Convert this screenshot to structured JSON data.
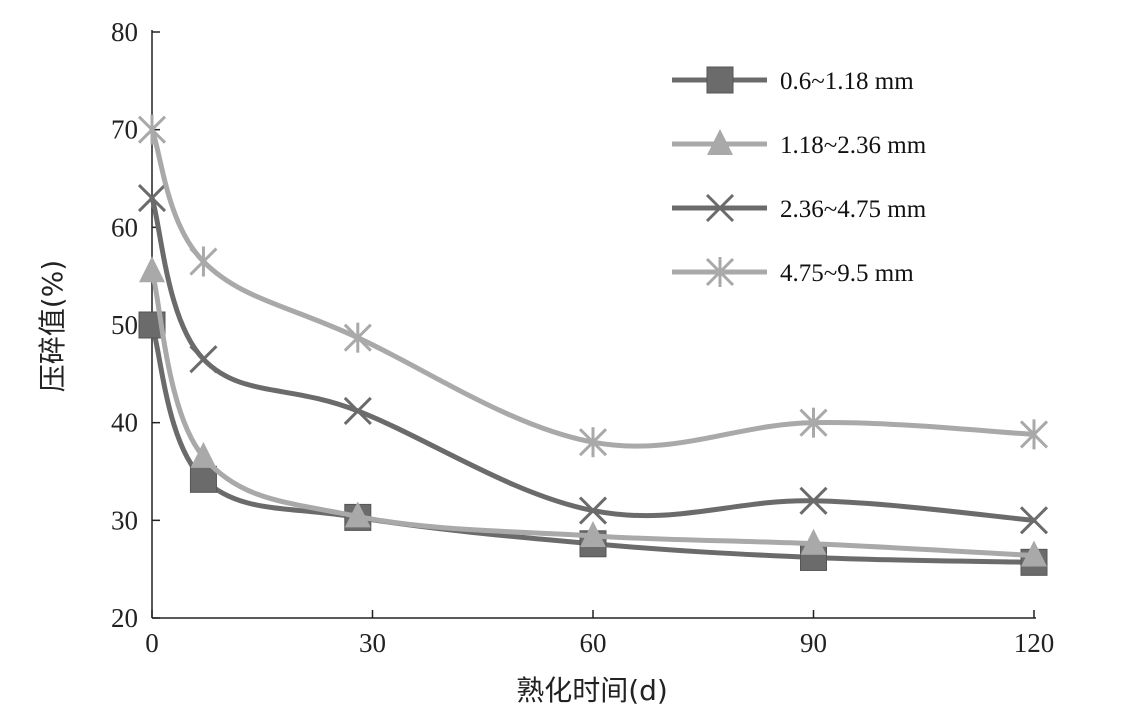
{
  "chart_data": {
    "type": "line",
    "title": "",
    "xlabel": "熟化时间(d)",
    "ylabel": "压碎值(%)",
    "xlim": [
      0,
      120
    ],
    "ylim": [
      20,
      80
    ],
    "xticks": [
      0,
      30,
      60,
      90,
      120
    ],
    "yticks": [
      20,
      30,
      40,
      50,
      60,
      70,
      80
    ],
    "grid": false,
    "legend_position": "top-right",
    "x": [
      0,
      7,
      28,
      60,
      90,
      120
    ],
    "series": [
      {
        "name": "0.6~1.18 mm",
        "marker": "square",
        "color": "#6b6b6b",
        "values": [
          50,
          34.2,
          30.3,
          27.6,
          26.2,
          25.7
        ]
      },
      {
        "name": "1.18~2.36 mm",
        "marker": "triangle",
        "color": "#a9a9a9",
        "values": [
          55.5,
          36.5,
          30.4,
          28.4,
          27.6,
          26.4
        ]
      },
      {
        "name": "2.36~4.75 mm",
        "marker": "x",
        "color": "#6b6b6b",
        "values": [
          63,
          46.5,
          41.2,
          31,
          32,
          30
        ]
      },
      {
        "name": "4.75~9.5 mm",
        "marker": "asterisk",
        "color": "#a9a9a9",
        "values": [
          70,
          56.5,
          48.7,
          38,
          40,
          38.8
        ]
      }
    ]
  }
}
